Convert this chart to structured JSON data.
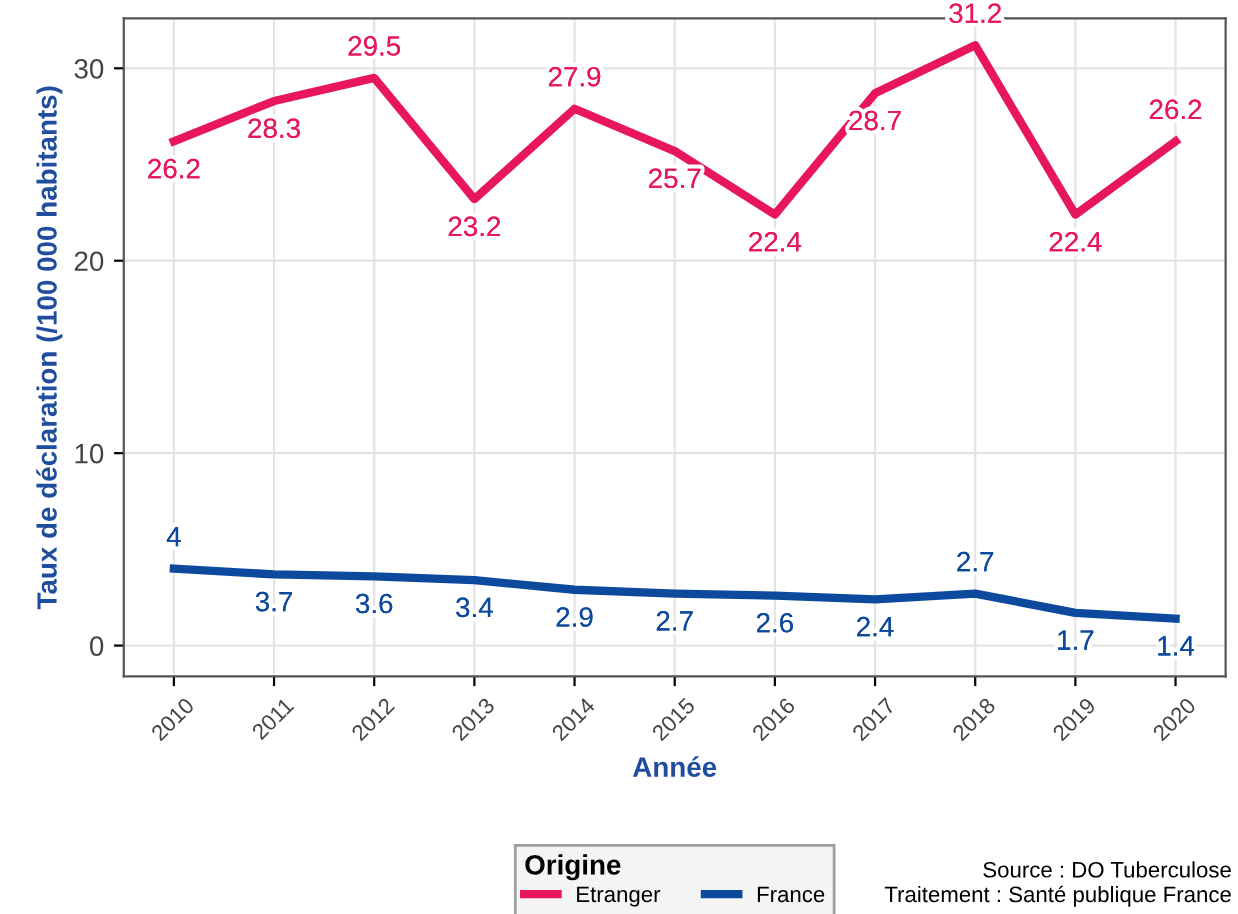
{
  "chart_data": {
    "type": "line",
    "xlabel": "Année",
    "ylabel": "Taux de déclaration (/100 000 habitants)",
    "legend_title": "Origine",
    "categories": [
      "2010",
      "2011",
      "2012",
      "2013",
      "2014",
      "2015",
      "2016",
      "2017",
      "2018",
      "2019",
      "2020"
    ],
    "series": [
      {
        "name": "Etranger",
        "color": "#e8175d",
        "values": [
          26.2,
          28.3,
          29.5,
          23.2,
          27.9,
          25.7,
          22.4,
          28.7,
          31.2,
          22.4,
          26.2
        ]
      },
      {
        "name": "France",
        "color": "#0d4a9e",
        "values": [
          4,
          3.7,
          3.6,
          3.4,
          2.9,
          2.7,
          2.6,
          2.4,
          2.7,
          1.7,
          1.4
        ]
      }
    ],
    "ylim": [
      -1.6,
      32.6
    ],
    "yticks": [
      0,
      10,
      20,
      30
    ],
    "grid": true,
    "legend": "bottom",
    "data_labels": true,
    "line_style": "solid",
    "marker": "none",
    "annotations": [
      "Source : DO Tuberculose",
      "Traitement : Santé publique France"
    ]
  }
}
